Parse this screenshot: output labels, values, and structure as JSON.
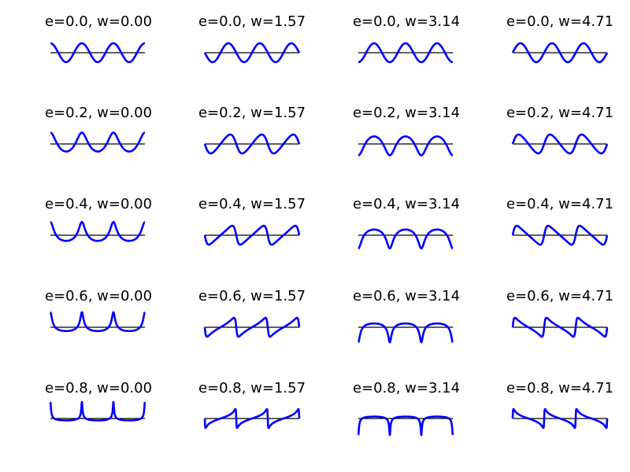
{
  "chart_data": {
    "type": "line",
    "grid": false,
    "axes_visible": false,
    "baseline_color": "#000000",
    "series_color": "#0000ff",
    "x_range": [
      0,
      3
    ],
    "y_range_per_panel": [
      -0.35,
      0.35
    ],
    "rows": [
      {
        "e": 0.0,
        "e_label": "0.0"
      },
      {
        "e": 0.2,
        "e_label": "0.2"
      },
      {
        "e": 0.4,
        "e_label": "0.4"
      },
      {
        "e": 0.6,
        "e_label": "0.6"
      },
      {
        "e": 0.8,
        "e_label": "0.8"
      }
    ],
    "cols": [
      {
        "w": 0.0,
        "w_label": "0.00"
      },
      {
        "w": 1.5708,
        "w_label": "1.57"
      },
      {
        "w": 3.1416,
        "w_label": "3.14"
      },
      {
        "w": 4.7124,
        "w_label": "4.71"
      }
    ],
    "panel_titles": [
      [
        "e=0.0, w=0.00",
        "e=0.0, w=1.57",
        "e=0.0, w=3.14",
        "e=0.0, w=4.71"
      ],
      [
        "e=0.2, w=0.00",
        "e=0.2, w=1.57",
        "e=0.2, w=3.14",
        "e=0.2, w=4.71"
      ],
      [
        "e=0.4, w=0.00",
        "e=0.4, w=1.57",
        "e=0.4, w=3.14",
        "e=0.4, w=4.71"
      ],
      [
        "e=0.6, w=0.00",
        "e=0.6, w=1.57",
        "e=0.6, w=3.14",
        "e=0.6, w=4.71"
      ],
      [
        "e=0.8, w=0.00",
        "e=0.8, w=1.57",
        "e=0.8, w=3.14",
        "e=0.8, w=4.71"
      ]
    ]
  }
}
